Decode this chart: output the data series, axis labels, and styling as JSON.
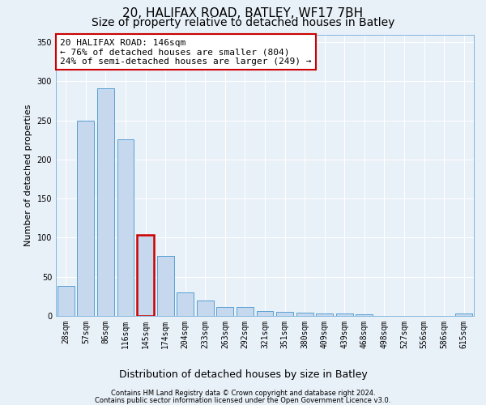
{
  "title": "20, HALIFAX ROAD, BATLEY, WF17 7BH",
  "subtitle": "Size of property relative to detached houses in Batley",
  "xlabel": "Distribution of detached houses by size in Batley",
  "ylabel": "Number of detached properties",
  "categories": [
    "28sqm",
    "57sqm",
    "86sqm",
    "116sqm",
    "145sqm",
    "174sqm",
    "204sqm",
    "233sqm",
    "263sqm",
    "292sqm",
    "321sqm",
    "351sqm",
    "380sqm",
    "409sqm",
    "439sqm",
    "468sqm",
    "498sqm",
    "527sqm",
    "556sqm",
    "586sqm",
    "615sqm"
  ],
  "values": [
    38,
    250,
    291,
    226,
    104,
    77,
    30,
    20,
    11,
    11,
    6,
    5,
    4,
    3,
    3,
    2,
    0,
    0,
    0,
    0,
    3
  ],
  "bar_color": "#c5d8ed",
  "bar_edge_color": "#5a9fd4",
  "highlight_bar_index": 4,
  "highlight_bar_edge_color": "#cc0000",
  "annotation_text": "20 HALIFAX ROAD: 146sqm\n← 76% of detached houses are smaller (804)\n24% of semi-detached houses are larger (249) →",
  "annotation_box_color": "#ffffff",
  "annotation_box_edge_color": "#cc0000",
  "ylim": [
    0,
    360
  ],
  "yticks": [
    0,
    50,
    100,
    150,
    200,
    250,
    300,
    350
  ],
  "background_color": "#e8f0f8",
  "grid_color": "#ffffff",
  "footer_line1": "Contains HM Land Registry data © Crown copyright and database right 2024.",
  "footer_line2": "Contains public sector information licensed under the Open Government Licence v3.0.",
  "title_fontsize": 11,
  "subtitle_fontsize": 10,
  "xlabel_fontsize": 9,
  "ylabel_fontsize": 8,
  "tick_fontsize": 7,
  "annotation_fontsize": 8,
  "footer_fontsize": 6
}
